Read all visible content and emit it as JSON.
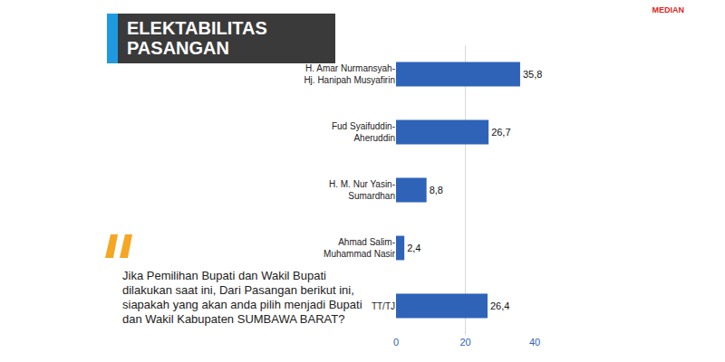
{
  "chart_data": {
    "type": "bar",
    "orientation": "horizontal",
    "title": "ELEKTABILITAS PASANGAN",
    "categories": [
      "H. Amar Nurmansyah-\nHj. Hanipah Musyafirin",
      "Fud Syaifuddin-\nAheruddin",
      "H. M. Nur Yasin-\nSumardhan",
      "Ahmad Salim-\nMuhammad Nasir",
      "TT/TJ"
    ],
    "values": [
      35.8,
      26.7,
      8.8,
      2.4,
      26.4
    ],
    "value_labels": [
      "35,8",
      "26,7",
      "8,8",
      "2,4",
      "26,4"
    ],
    "color": "#2e63b8",
    "xlim": [
      0,
      40
    ],
    "xticks": [
      0,
      20,
      40
    ],
    "grid": true,
    "data_labels": true,
    "annotations": [
      "Jika Pemilihan Bupati dan Wakil Bupati dilakukan saat ini, Dari Pasangan berikut ini, siapakah yang akan anda pilih menjadi Bupati dan Wakil Kabupaten SUMBAWA BARAT?",
      "MEDIAN"
    ]
  }
}
